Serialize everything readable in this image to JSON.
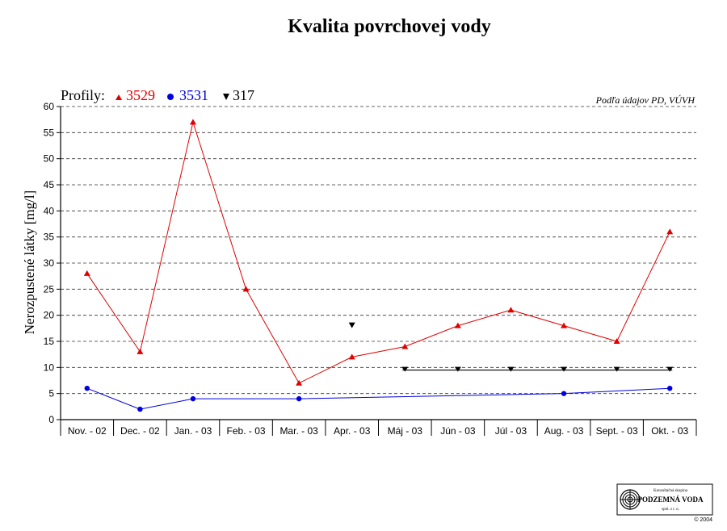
{
  "title": "Kvalita povrchovej vody",
  "legend": {
    "prefix": "Profily:",
    "items": [
      {
        "label": "3529",
        "color": "#e00000",
        "marker": "triangle-up"
      },
      {
        "label": "3531",
        "color": "#0000e0",
        "marker": "circle"
      },
      {
        "label": "317",
        "color": "#000000",
        "marker": "triangle-down"
      }
    ]
  },
  "source": "Podľa údajov PD, VÚVH",
  "logo": {
    "line1": "Konzultačná skupina",
    "name": "PODZEMNÁ VODA",
    "line3": "spol. s r. o.",
    "copyright": "© 2004"
  },
  "chart_data": {
    "type": "line",
    "title": "Kvalita povrchovej vody",
    "ylabel": "Nerozpustené látky [mg/l]",
    "xlabel": "",
    "ylim": [
      0,
      60
    ],
    "yticks": [
      0,
      5,
      10,
      15,
      20,
      25,
      30,
      35,
      40,
      45,
      50,
      55,
      60
    ],
    "grid": true,
    "legend_position": "top-left",
    "categories": [
      "Nov. - 02",
      "Dec. - 02",
      "Jan. - 03",
      "Feb. - 03",
      "Mar. - 03",
      "Apr. - 03",
      "Máj - 03",
      "Jún - 03",
      "Júl - 03",
      "Aug. - 03",
      "Sept. - 03",
      "Okt. - 03"
    ],
    "series": [
      {
        "name": "3529",
        "color": "#e00000",
        "marker": "triangle-up",
        "connected": true,
        "values": [
          28,
          13,
          57,
          25,
          7,
          12,
          14,
          18,
          21,
          18,
          15,
          36
        ]
      },
      {
        "name": "3531",
        "color": "#0000e0",
        "marker": "circle",
        "connected": true,
        "values": [
          6,
          2,
          4,
          null,
          4,
          null,
          null,
          null,
          null,
          5,
          null,
          6
        ]
      },
      {
        "name": "317",
        "color": "#000000",
        "marker": "triangle-down",
        "connected": false,
        "values": [
          null,
          null,
          null,
          null,
          null,
          18,
          null,
          null,
          null,
          null,
          null,
          null
        ]
      }
    ],
    "reference_line": {
      "series": "317",
      "value": 9.5,
      "from": "Máj - 03",
      "to": "Okt. - 03",
      "markers_at": [
        "Máj - 03",
        "Jún - 03",
        "Júl - 03",
        "Aug. - 03",
        "Sept. - 03",
        "Okt. - 03"
      ]
    }
  }
}
